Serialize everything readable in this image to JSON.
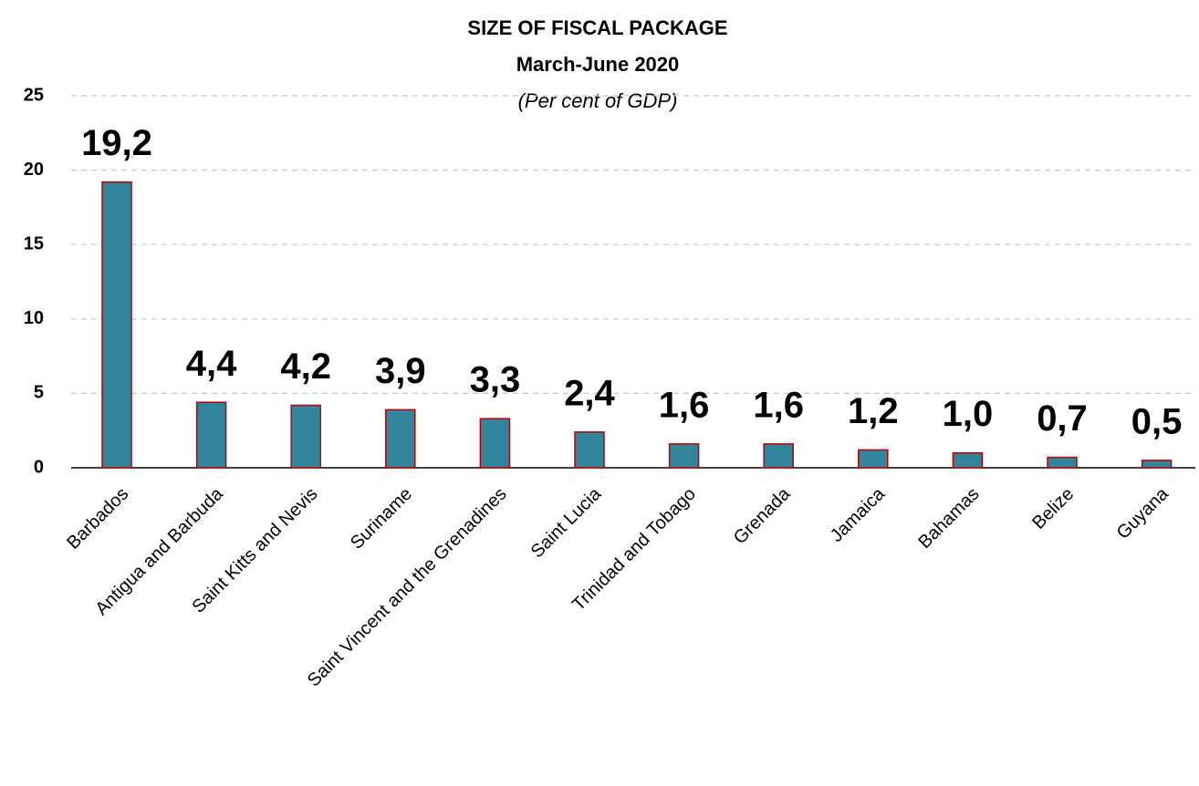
{
  "chart_data": {
    "type": "bar",
    "title": "SIZE OF FISCAL PACKAGE",
    "subtitle": "March-June 2020",
    "unit_note": "(Per cent of GDP)",
    "categories": [
      "Barbados",
      "Antigua and Barbuda",
      "Saint Kitts and Nevis",
      "Suriname",
      "Saint Vincent and the Grenadines",
      "Saint Lucia",
      "Trinidad and Tobago",
      "Grenada",
      "Jamaica",
      "Bahamas",
      "Belize",
      "Guyana"
    ],
    "values": [
      19.2,
      4.4,
      4.2,
      3.9,
      3.3,
      2.4,
      1.6,
      1.6,
      1.2,
      1.0,
      0.7,
      0.5
    ],
    "value_labels": [
      "19,2",
      "4,4",
      "4,2",
      "3,9",
      "3,3",
      "2,4",
      "1,6",
      "1,6",
      "1,2",
      "1,0",
      "0,7",
      "0,5"
    ],
    "color": "#31849b",
    "edge_color": "#c00000",
    "ylim": [
      0,
      25
    ],
    "yticks": [
      0,
      5,
      10,
      15,
      20,
      25
    ],
    "grid": true
  }
}
